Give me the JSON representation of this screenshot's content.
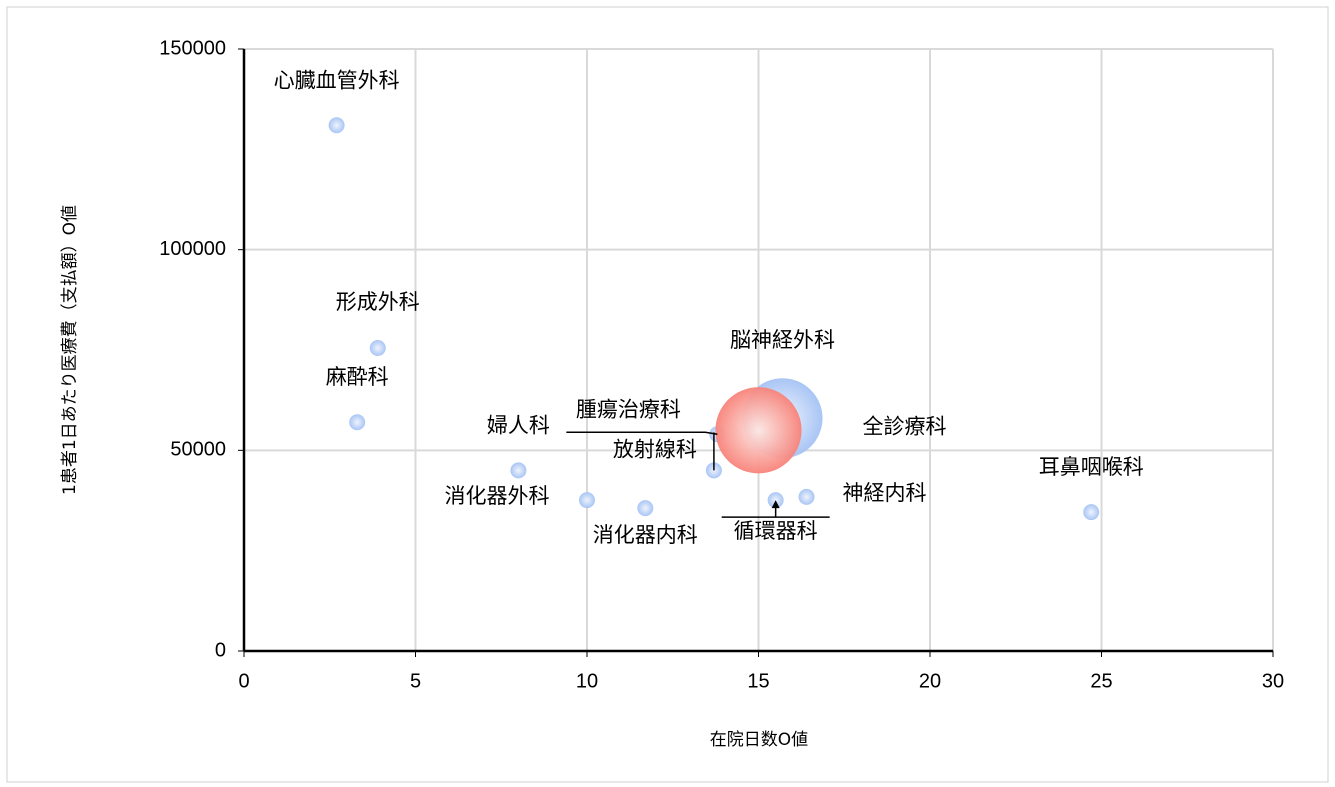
{
  "chart_data": {
    "type": "bubble",
    "x_label": "在院日数O値",
    "y_label": "1患者1日あたり医療費（支払額）O値",
    "xlim": [
      0,
      30
    ],
    "xticks": [
      0,
      5,
      10,
      15,
      20,
      25,
      30
    ],
    "ylim": [
      0,
      150000
    ],
    "yticks": [
      0,
      50000,
      100000,
      150000
    ],
    "grid": true,
    "series": [
      {
        "color": "#a4c2f4",
        "labels": [
          "心臓血管外科",
          "形成外科",
          "麻酔科",
          "婦人科",
          "消化器外科",
          "消化器内科",
          "腫瘍治療科",
          "放射線科",
          "循環器科",
          "神経内科",
          "耳鼻咽喉科",
          "脳神経外科"
        ],
        "x": [
          2.7,
          3.9,
          3.3,
          8.0,
          10.0,
          11.7,
          13.8,
          13.7,
          15.5,
          16.4,
          24.7,
          15.7
        ],
        "values": [
          131000,
          75500,
          57000,
          45000,
          37600,
          35600,
          54000,
          45000,
          37600,
          38400,
          34600,
          58000
        ],
        "sizes": [
          1,
          1,
          1,
          1,
          1,
          1,
          1,
          1,
          1,
          1,
          1,
          25
        ]
      },
      {
        "color": "#f8837a",
        "labels": [
          "全診療科"
        ],
        "x": [
          15.0
        ],
        "values": [
          55000
        ],
        "sizes": [
          29
        ]
      }
    ]
  }
}
